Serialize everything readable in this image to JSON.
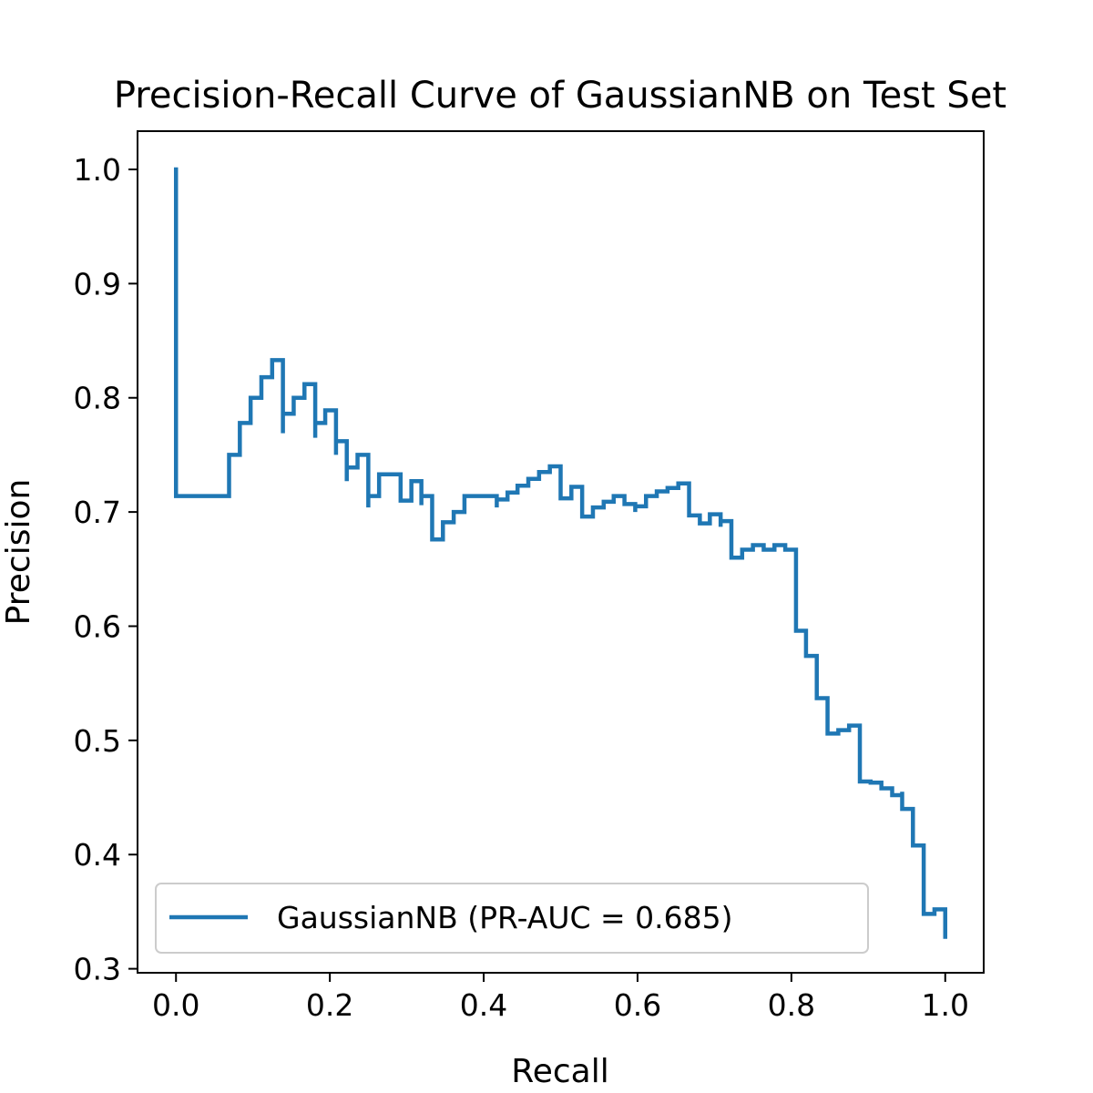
{
  "chart_data": {
    "type": "line",
    "drawstyle": "steps-post",
    "title": "Precision-Recall Curve of GaussianNB on Test Set",
    "xlabel": "Recall",
    "ylabel": "Precision",
    "xlim": [
      -0.05,
      1.05
    ],
    "ylim": [
      0.2965,
      1.0335
    ],
    "xticks": [
      0.0,
      0.2,
      0.4,
      0.6,
      0.8,
      1.0
    ],
    "xtick_labels": [
      "0.0",
      "0.2",
      "0.4",
      "0.6",
      "0.8",
      "1.0"
    ],
    "yticks": [
      0.3,
      0.4,
      0.5,
      0.6,
      0.7,
      0.8,
      0.9,
      1.0
    ],
    "ytick_labels": [
      "0.3",
      "0.4",
      "0.5",
      "0.6",
      "0.7",
      "0.8",
      "0.9",
      "1.0"
    ],
    "grid": false,
    "legend_position": "lower left",
    "series": [
      {
        "name": "GaussianNB (PR-AUC = 0.685)",
        "color": "#1f77b4",
        "x": [
          0.0,
          0.0,
          0.069,
          0.083,
          0.097,
          0.111,
          0.125,
          0.139,
          0.139,
          0.153,
          0.167,
          0.181,
          0.181,
          0.194,
          0.208,
          0.208,
          0.222,
          0.222,
          0.236,
          0.25,
          0.25,
          0.264,
          0.264,
          0.278,
          0.292,
          0.306,
          0.306,
          0.319,
          0.319,
          0.333,
          0.347,
          0.347,
          0.361,
          0.375,
          0.389,
          0.417,
          0.417,
          0.431,
          0.444,
          0.458,
          0.472,
          0.486,
          0.5,
          0.514,
          0.514,
          0.528,
          0.542,
          0.542,
          0.556,
          0.569,
          0.583,
          0.597,
          0.597,
          0.611,
          0.611,
          0.625,
          0.639,
          0.653,
          0.667,
          0.681,
          0.694,
          0.694,
          0.708,
          0.708,
          0.722,
          0.736,
          0.736,
          0.75,
          0.764,
          0.778,
          0.792,
          0.806,
          0.806,
          0.819,
          0.833,
          0.847,
          0.861,
          0.875,
          0.875,
          0.889,
          0.903,
          0.917,
          0.931,
          0.944,
          0.944,
          0.958,
          0.972,
          0.986,
          1.0
        ],
        "y": [
          1.0,
          0.714,
          0.75,
          0.778,
          0.8,
          0.818,
          0.833,
          0.769,
          0.786,
          0.8,
          0.812,
          0.765,
          0.778,
          0.789,
          0.75,
          0.762,
          0.727,
          0.739,
          0.75,
          0.704,
          0.714,
          0.724,
          0.733,
          0.733,
          0.71,
          0.719,
          0.727,
          0.706,
          0.714,
          0.676,
          0.683,
          0.691,
          0.7,
          0.714,
          0.714,
          0.704,
          0.711,
          0.717,
          0.723,
          0.729,
          0.735,
          0.74,
          0.712,
          0.717,
          0.722,
          0.696,
          0.7,
          0.704,
          0.709,
          0.714,
          0.707,
          0.7,
          0.705,
          0.71,
          0.714,
          0.718,
          0.721,
          0.725,
          0.697,
          0.69,
          0.694,
          0.698,
          0.687,
          0.692,
          0.66,
          0.664,
          0.667,
          0.671,
          0.667,
          0.671,
          0.667,
          0.598,
          0.596,
          0.574,
          0.537,
          0.506,
          0.509,
          0.513,
          0.513,
          0.464,
          0.463,
          0.458,
          0.452,
          0.455,
          0.44,
          0.408,
          0.348,
          0.352,
          0.328
        ]
      }
    ]
  }
}
